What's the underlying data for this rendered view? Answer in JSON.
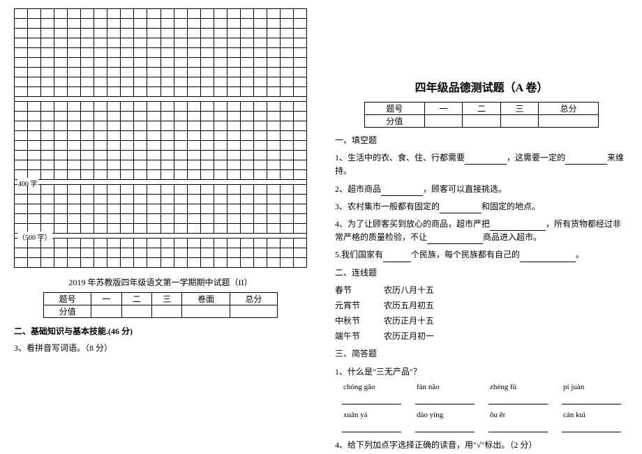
{
  "left": {
    "grid": {
      "cols": 22,
      "group1_rows": 9,
      "group2_rows": 8,
      "group3_rows": 5,
      "group4_rows": 3,
      "label_400": "400 字",
      "label_500": "（500 字）"
    },
    "mid_title": "2019 年苏教版四年级语文第一学期期中试题（II）",
    "score_table": {
      "headers": [
        "题号",
        "一",
        "二",
        "三",
        "卷面",
        "总分"
      ],
      "row2_first": "分值"
    },
    "sec2_title": "二、基础知识与基本技能.(46 分)",
    "sec2_item3": "3、看拼音写词语。（8 分）"
  },
  "right": {
    "title": "四年级品德测试题（A 卷）",
    "score_table": {
      "headers": [
        "题号",
        "一",
        "二",
        "三",
        "总分"
      ],
      "row2_first": "分值"
    },
    "sec1_head": "一、填空题",
    "q1_a": "1、生活中的衣、食、住、行都需要",
    "q1_b": "，这需要一定的",
    "q1_c": "来维持。",
    "q2_a": "2、超市商品",
    "q2_b": "，顾客可以直接挑选。",
    "q3_a": "3、农村集市一般都有固定的",
    "q3_b": "和固定的地点。",
    "q4_a": "4、为了让顾客买到放心的商品，超市严把",
    "q4_b": "，所有货物都经过非常严格的质量检验，不让",
    "q4_c": "商品进入超市。",
    "q5_a": "5.我们国家有",
    "q5_b": "个民族，每个民族都有自己的",
    "q5_c": "。",
    "sec2_head": "二、连线题",
    "match": [
      [
        "春节",
        "农历八月十五"
      ],
      [
        "元宵节",
        "农历五月初五"
      ],
      [
        "中秋节",
        "农历正月十五"
      ],
      [
        "端午节",
        "农历正月初一"
      ]
    ],
    "sec3_head": "三、简答题",
    "q_simple1": "1、什么是\"三无产品\"？",
    "pinyin_row1": [
      "chóng  gǎo",
      "fán  nǎo",
      "zhèng  fǔ",
      "pí  juàn"
    ],
    "pinyin_row2": [
      "xuān  yá",
      "dào  yìng",
      "ǒu  ěr",
      "cán  kuì"
    ],
    "q4_text": "4、给下列加点字选择正确的读音，用\"√\"标出。（2 分）"
  }
}
